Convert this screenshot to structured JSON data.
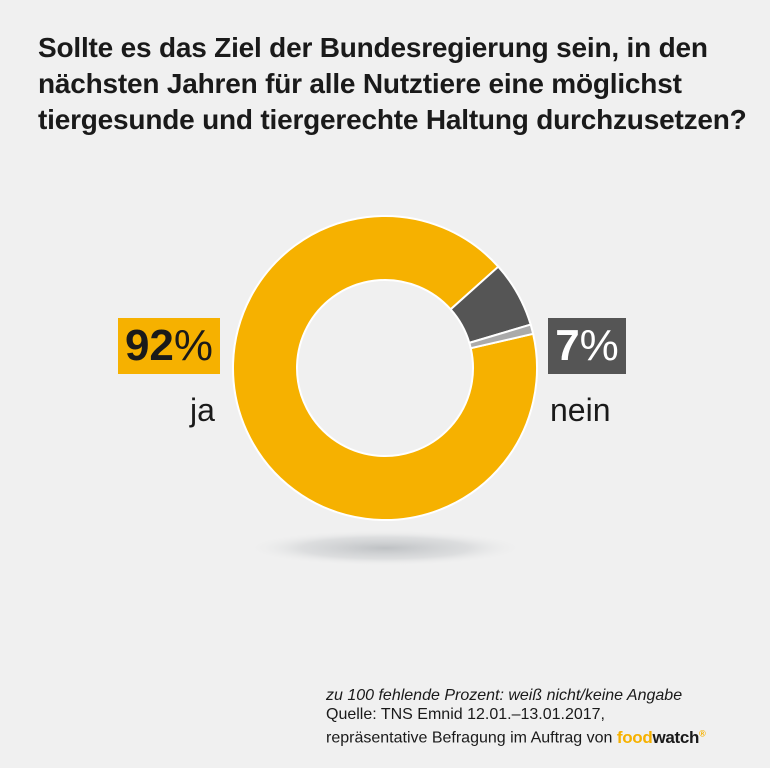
{
  "title_lines": [
    "Sollte es das Ziel der Bundesregierung sein, in den",
    "nächsten Jahren für alle Nutztiere eine möglichst",
    "tiergesunde und tiergerechte Haltung durchzusetzen?"
  ],
  "colors": {
    "ja": "#f6b100",
    "nein": "#555555",
    "other": "#aaaaaa",
    "background": "#f0f0f0"
  },
  "chart_data": {
    "type": "pie",
    "style": "donut",
    "categories": [
      "ja",
      "nein",
      "weiß nicht/keine Angabe"
    ],
    "values": [
      92,
      7,
      1
    ],
    "data_labels": [
      "92%",
      "7%",
      ""
    ],
    "legend": "none"
  },
  "labels": {
    "ja_num": "92",
    "ja_sym": "%",
    "ja": "ja",
    "nein_num": "7",
    "nein_sym": "%",
    "nein": "nein"
  },
  "footnote": {
    "note": "zu 100 fehlende Prozent: weiß nicht/keine Angabe",
    "source": "Quelle: TNS Emnid 12.01.–13.01.2017,",
    "method": "repräsentative Befragung im Auftrag von",
    "logo_a": "food",
    "logo_b": "watch",
    "logo_reg": "®"
  }
}
